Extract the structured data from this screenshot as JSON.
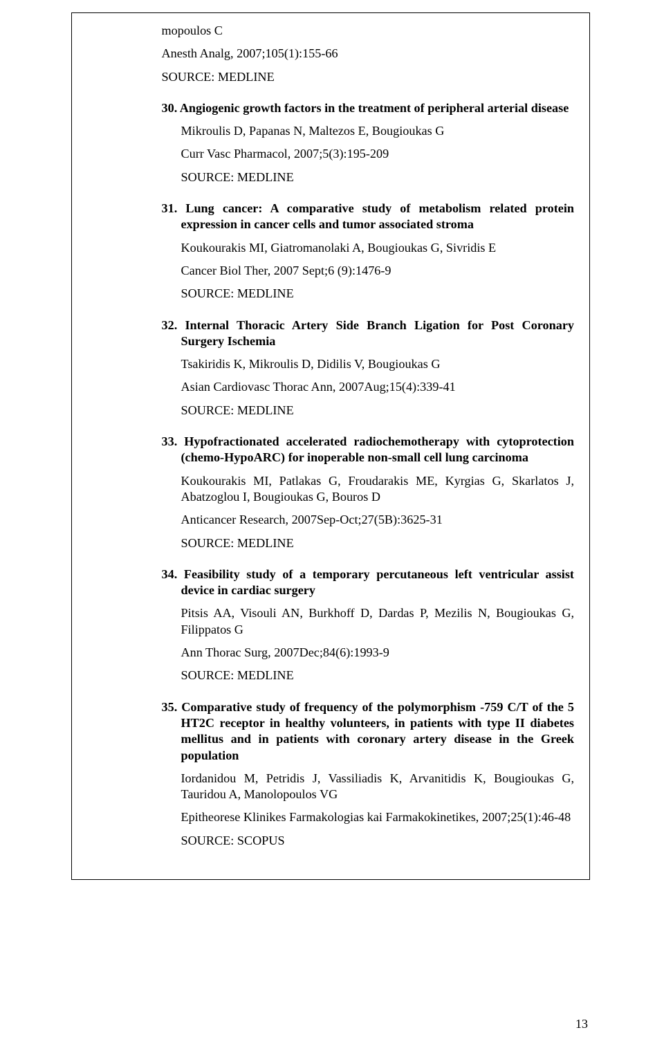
{
  "pageNumber": "13",
  "continuation": {
    "authors": "mopoulos C",
    "journal": "Anesth Analg, 2007;105(1):155-66",
    "source": "SOURCE: MEDLINE"
  },
  "entries": [
    {
      "number": "30.",
      "title": "Angiogenic growth factors in the treatment of peripheral arterial disease",
      "authors": "Mikroulis D, Papanas N, Maltezos E, Bougioukas G",
      "journal": "Curr Vasc Pharmacol, 2007;5(3):195-209",
      "source": "SOURCE: MEDLINE"
    },
    {
      "number": "31.",
      "title": "Lung cancer: A comparative study of metabolism related protein expression in cancer cells and tumor associated stroma",
      "authors": "Koukourakis MI, Giatromanolaki A, Bougioukas G,  Sivridis E",
      "journal": "Cancer Biol Ther, 2007 Sept;6 (9):1476-9",
      "source": "SOURCE: MEDLINE"
    },
    {
      "number": "32.",
      "title": "Internal Thoracic Artery Side Branch Ligation for Post Coronary Surgery Ischemia",
      "authors": "Tsakiridis K, Mikroulis D, Didilis V, Bougioukas G",
      "journal": "Asian Cardiovasc Thorac Ann, 2007Aug;15(4):339-41",
      "source": "SOURCE: MEDLINE"
    },
    {
      "number": "33.",
      "title": "Hypofractionated accelerated radiochemotherapy with cytoprotection (chemo-HypoARC) for inoperable non-small cell lung carcinoma",
      "authors": "Koukourakis MI, Patlakas G, Froudarakis ME, Kyrgias G, Skarlatos J, Abatzoglou I, Bougioukas G, Bouros D",
      "journal": "Anticancer Research, 2007Sep-Oct;27(5B):3625-31",
      "source": "SOURCE: MEDLINE"
    },
    {
      "number": "34.",
      "title": "Feasibility study of a temporary percutaneous left ventricular assist device in cardiac surgery",
      "authors": "Pitsis AA, Visouli AN, Burkhoff D, Dardas P, Mezilis N, Bougioukas G, Filippatos G",
      "journal": "Ann Thorac Surg, 2007Dec;84(6):1993-9",
      "source": "SOURCE: MEDLINE"
    },
    {
      "number": "35.",
      "title": "Comparative study of frequency of the polymorphism -759 C/T of the 5 HT2C receptor in healthy volunteers, in patients with type II diabetes mellitus and in patients with coronary artery disease in the Greek population",
      "authors": "Iordanidou M, Petridis J, Vassiliadis K, Arvanitidis K, Bougioukas G, Tauridou A, Manolopoulos VG",
      "journal": "Epitheorese Klinikes Farmakologias kai Farmakokinetikes, 2007;25(1):46-48",
      "source": "SOURCE: SCOPUS"
    }
  ]
}
